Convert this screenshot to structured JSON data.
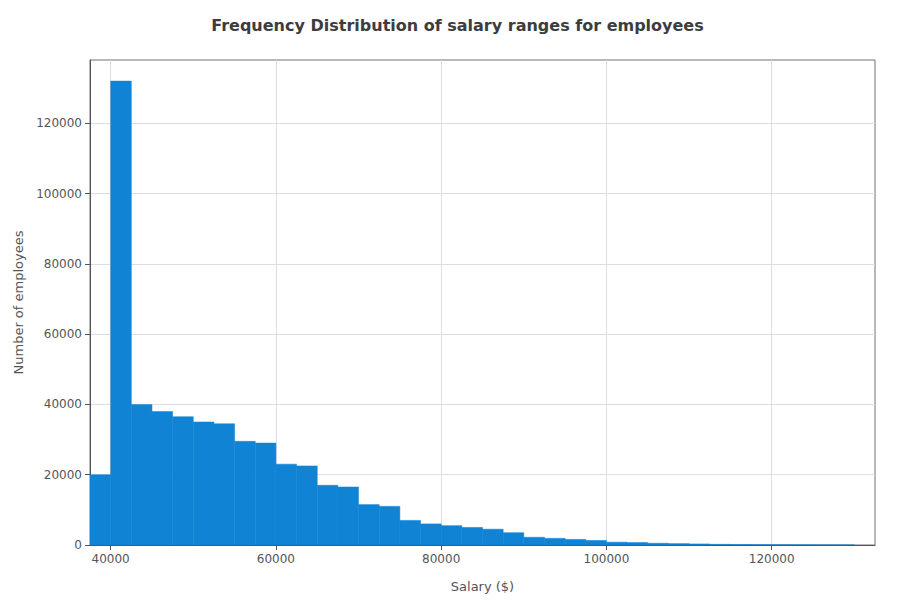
{
  "chart_data": {
    "type": "histogram",
    "title": "Frequency Distribution of salary ranges for employees",
    "xlabel": "Salary ($)",
    "ylabel": "Number of employees",
    "bins": [
      37500,
      40000,
      42500,
      45000,
      47500,
      50000,
      52500,
      55000,
      57500,
      60000,
      62500,
      65000,
      67500,
      70000,
      72500,
      75000,
      77500,
      80000,
      82500,
      85000,
      87500,
      90000,
      92500,
      95000,
      97500,
      100000,
      102500,
      105000,
      107500,
      110000,
      112500,
      115000,
      117500,
      120000,
      122500,
      125000,
      127500,
      130000
    ],
    "values": [
      20000,
      132000,
      40000,
      38000,
      36500,
      35000,
      34500,
      29500,
      29000,
      23000,
      22500,
      17000,
      16500,
      11500,
      11000,
      7000,
      6000,
      5500,
      5000,
      4500,
      3500,
      2200,
      1900,
      1600,
      1300,
      800,
      700,
      500,
      400,
      300,
      200,
      150,
      100,
      80,
      60,
      40,
      30
    ],
    "color": "#1083d4",
    "xlim": [
      37500,
      132500
    ],
    "ylim": [
      0,
      138000
    ],
    "xticks": [
      40000,
      60000,
      80000,
      100000,
      120000
    ],
    "yticks": [
      0,
      20000,
      40000,
      60000,
      80000,
      100000,
      120000
    ],
    "grid": true
  }
}
